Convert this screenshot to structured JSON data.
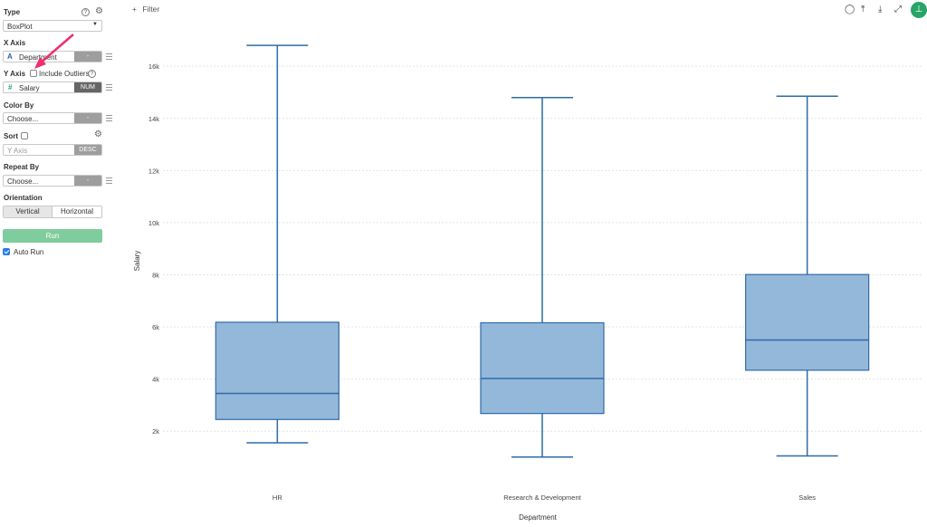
{
  "sidebar": {
    "type": {
      "label": "Type",
      "value": "BoxPlot",
      "help_icon": "help-circle-icon",
      "settings_icon": "gear-icon"
    },
    "x_axis": {
      "label": "X Axis",
      "type_glyph": "A",
      "value": "Department",
      "side": "-"
    },
    "y_axis": {
      "label": "Y Axis",
      "include_outliers_label": "Include Outliers",
      "type_glyph": "#",
      "value": "Salary",
      "side": "NUM"
    },
    "color_by": {
      "label": "Color By",
      "placeholder": "Choose...",
      "side": "-"
    },
    "sort": {
      "label": "Sort",
      "placeholder": "Y Axis",
      "side": "DESC"
    },
    "repeat_by": {
      "label": "Repeat By",
      "placeholder": "Choose...",
      "side": "-"
    },
    "orientation": {
      "label": "Orientation",
      "vertical": "Vertical",
      "horizontal": "Horizontal"
    },
    "run_label": "Run",
    "auto_run_label": "Auto Run"
  },
  "toolbar": {
    "filter_plus": "+",
    "filter_label": "Filter"
  },
  "colors": {
    "box_fill": "#94b8da",
    "box_stroke": "#2e6ba6",
    "accent_green": "#27a567",
    "arrow": "#ee2f6e"
  },
  "chart_data": {
    "type": "box",
    "xlabel": "Department",
    "ylabel": "Salary",
    "ylim": [
      1000,
      17500
    ],
    "yticks": [
      2000,
      4000,
      6000,
      8000,
      10000,
      12000,
      14000,
      16000
    ],
    "ytick_labels": [
      "2k",
      "4k",
      "6k",
      "8k",
      "10k",
      "12k",
      "14k",
      "16k"
    ],
    "grid": true,
    "categories": [
      "HR",
      "Research & Development",
      "Sales"
    ],
    "boxes": [
      {
        "category": "HR",
        "min": 1555,
        "q1": 2450,
        "median": 3450,
        "q3": 6180,
        "max": 16800
      },
      {
        "category": "Research & Development",
        "min": 1010,
        "q1": 2680,
        "median": 4020,
        "q3": 6160,
        "max": 14800
      },
      {
        "category": "Sales",
        "min": 1050,
        "q1": 4340,
        "median": 5500,
        "q3": 8010,
        "max": 14850
      }
    ]
  }
}
